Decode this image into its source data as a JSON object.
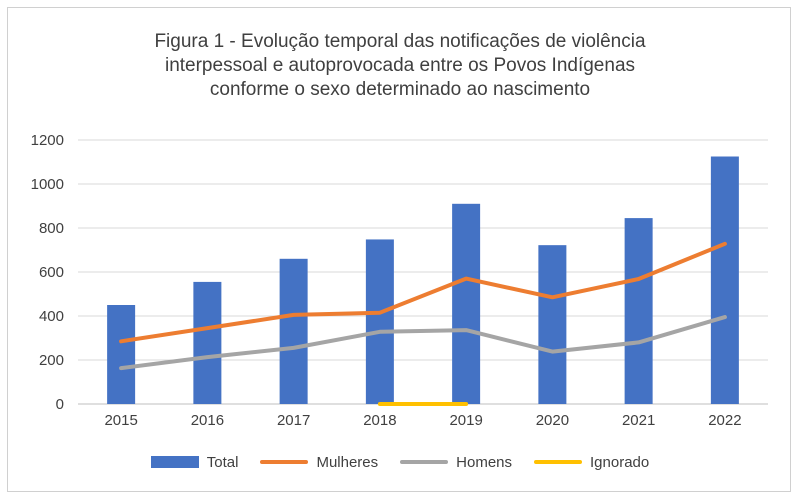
{
  "chart_data": {
    "type": "bar+line",
    "title_lines": [
      "Figura 1 - Evolução temporal das notificações de violência",
      "interpessoal e autoprovocada entre os Povos Indígenas",
      "conforme o sexo determinado ao nascimento"
    ],
    "categories": [
      "2015",
      "2016",
      "2017",
      "2018",
      "2019",
      "2020",
      "2021",
      "2022"
    ],
    "ylim": [
      0,
      1200
    ],
    "yticks": [
      "0",
      "200",
      "400",
      "600",
      "800",
      "1000",
      "1200"
    ],
    "grid": true,
    "legend_position": "bottom",
    "series": [
      {
        "name": "Total",
        "kind": "bar",
        "color": "#4472c4",
        "values": [
          450,
          555,
          660,
          748,
          910,
          722,
          845,
          1125
        ]
      },
      {
        "name": "Mulheres",
        "kind": "line",
        "color": "#ed7d31",
        "values": [
          285,
          345,
          405,
          415,
          570,
          485,
          568,
          728
        ]
      },
      {
        "name": "Homens",
        "kind": "line",
        "color": "#a5a5a5",
        "values": [
          163,
          213,
          255,
          328,
          336,
          238,
          280,
          395
        ]
      },
      {
        "name": "Ignorado",
        "kind": "line",
        "color": "#ffc000",
        "values": [
          0,
          0,
          0,
          0,
          0,
          0,
          0,
          0
        ],
        "visible_range": [
          3,
          4
        ]
      }
    ]
  }
}
